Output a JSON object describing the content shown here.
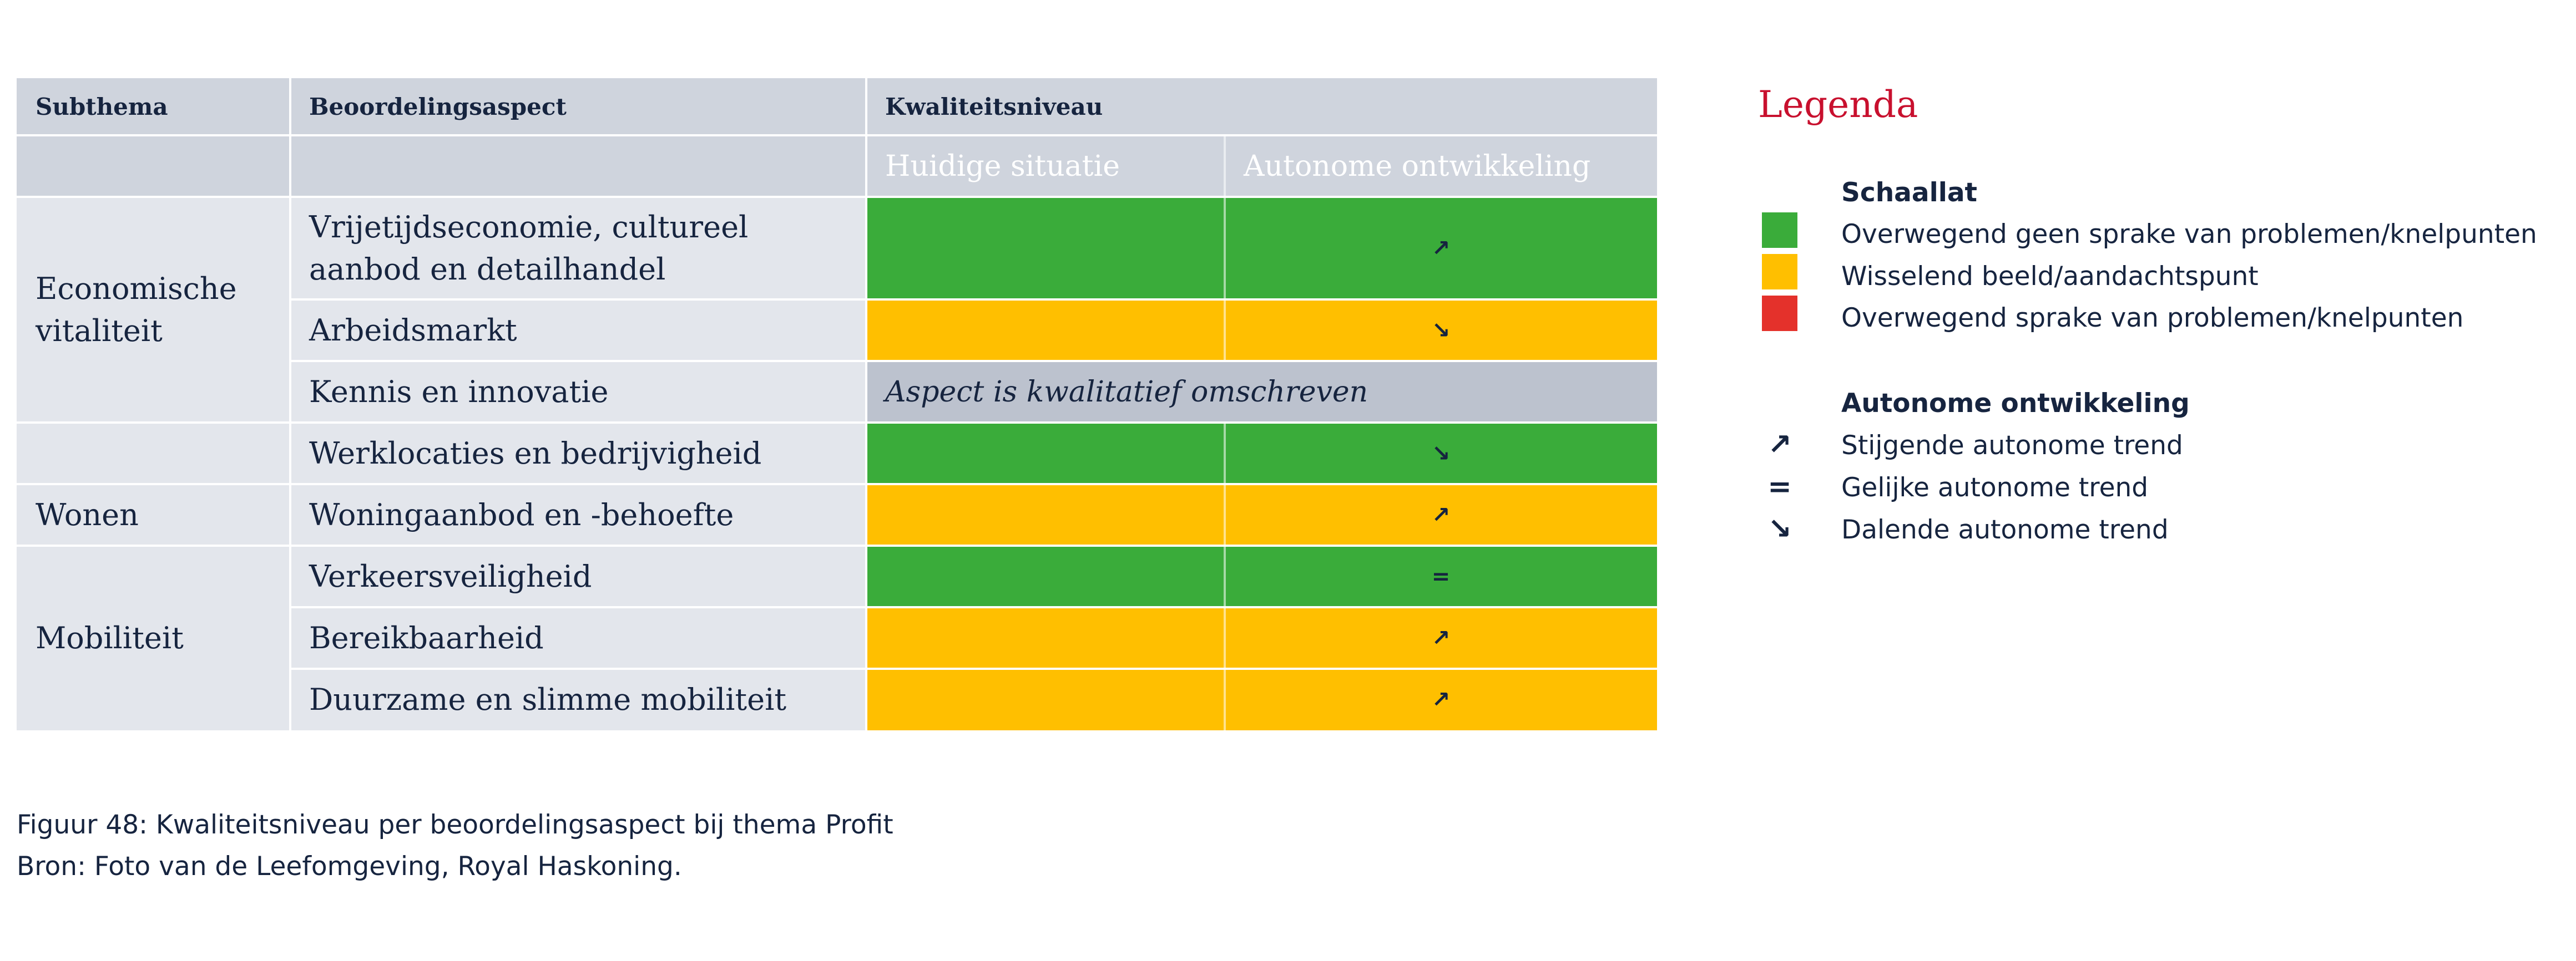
{
  "table": {
    "header": {
      "subthema": "Subthema",
      "beoordelingsaspect": "Beoordelingsaspect",
      "kwaliteitsniveau": "Kwaliteitsniveau",
      "huidige_situatie": "Huidige situatie",
      "autonome_ontwikkeling": "Autonome ontwikkeling"
    },
    "subthemes": [
      "Economische vitaliteit",
      "Wonen",
      "Mobiliteit"
    ],
    "rows": [
      {
        "aspect": "Vrijetijdseconomie, cultureel aanbod en detailhandel",
        "status": "green",
        "trend": "↗"
      },
      {
        "aspect": "Arbeidsmarkt",
        "status": "yellow",
        "trend": "↘"
      },
      {
        "aspect": "Kennis en innovatie",
        "status": "qualitative",
        "note": "Aspect is kwalitatief omschreven"
      },
      {
        "aspect": "Werklocaties en bedrijvigheid",
        "status": "green",
        "trend": "↘"
      },
      {
        "aspect": "Woningaanbod en -behoefte",
        "status": "yellow",
        "trend": "↗"
      },
      {
        "aspect": "Verkeersveiligheid",
        "status": "green",
        "trend": "="
      },
      {
        "aspect": "Bereikbaarheid",
        "status": "yellow",
        "trend": "↗"
      },
      {
        "aspect": "Duurzame en slimme mobiliteit",
        "status": "yellow",
        "trend": "↗"
      }
    ]
  },
  "legend": {
    "title": "Legenda",
    "scale_title": "Schaallat",
    "scale": [
      {
        "color": "#3aac3a",
        "label": "Overwegend geen sprake van problemen/knelpunten"
      },
      {
        "color": "#ffbf00",
        "label": "Wisselend beeld/aandachtspunt"
      },
      {
        "color": "#e4312b",
        "label": "Overwegend sprake van problemen/knelpunten"
      }
    ],
    "trend_title": "Autonome ontwikkeling",
    "trends": [
      {
        "icon": "↗",
        "label": "Stijgende autonome trend"
      },
      {
        "icon": "=",
        "label": "Gelijke autonome trend"
      },
      {
        "icon": "↘",
        "label": "Dalende autonome trend"
      }
    ]
  },
  "caption": {
    "figure": "Figuur 48: Kwaliteitsniveau per beoordelingsaspect bij thema Profit",
    "source": "Bron: Foto van de Leefomgeving, Royal Haskoning."
  },
  "colors": {
    "green": "#3aac3a",
    "yellow": "#ffbf00",
    "red": "#e4312b",
    "navy": "#16243f",
    "legend_title": "#c8102e"
  }
}
